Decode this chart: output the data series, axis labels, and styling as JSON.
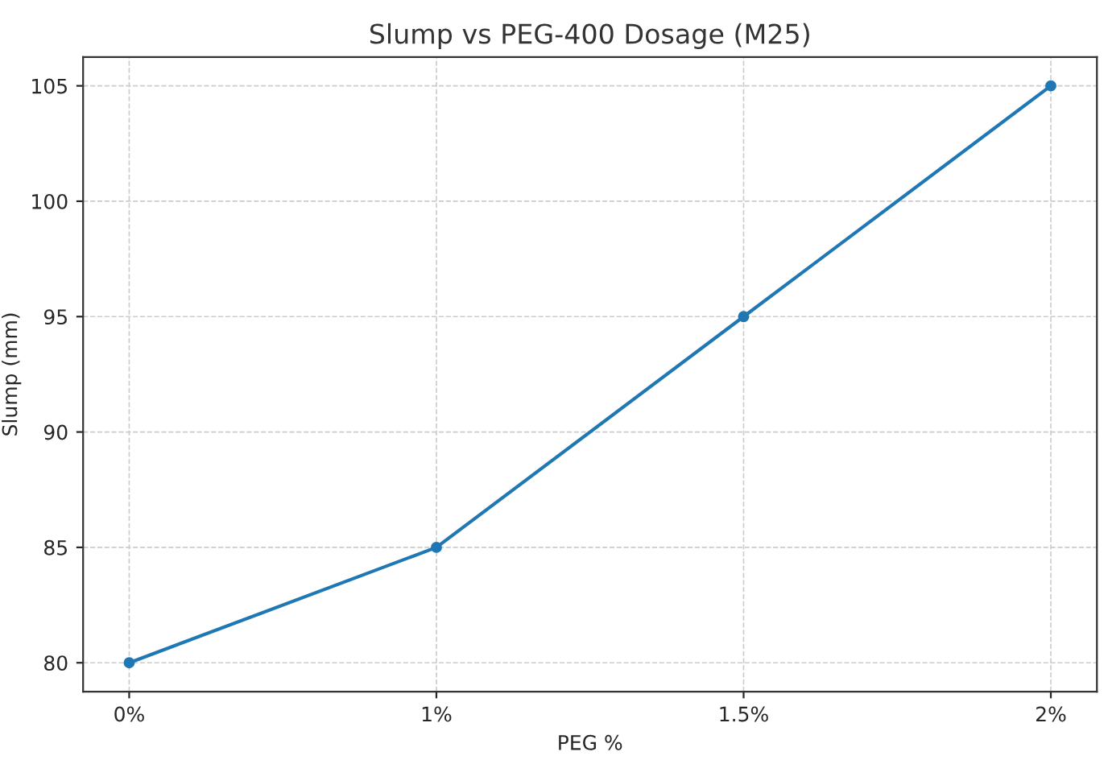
{
  "chart_data": {
    "type": "line",
    "title": "Slump vs PEG-400 Dosage (M25)",
    "xlabel": "PEG %",
    "ylabel": "Slump (mm)",
    "categories": [
      "0%",
      "1%",
      "1.5%",
      "2%"
    ],
    "series": [
      {
        "color": "#1f77b4",
        "values": [
          80,
          85,
          95,
          105
        ]
      }
    ],
    "ylim": [
      78.75,
      106.25
    ],
    "yticks": [
      80,
      85,
      90,
      95,
      100,
      105
    ],
    "grid": true,
    "marker": "circle",
    "line_style": "solid"
  }
}
